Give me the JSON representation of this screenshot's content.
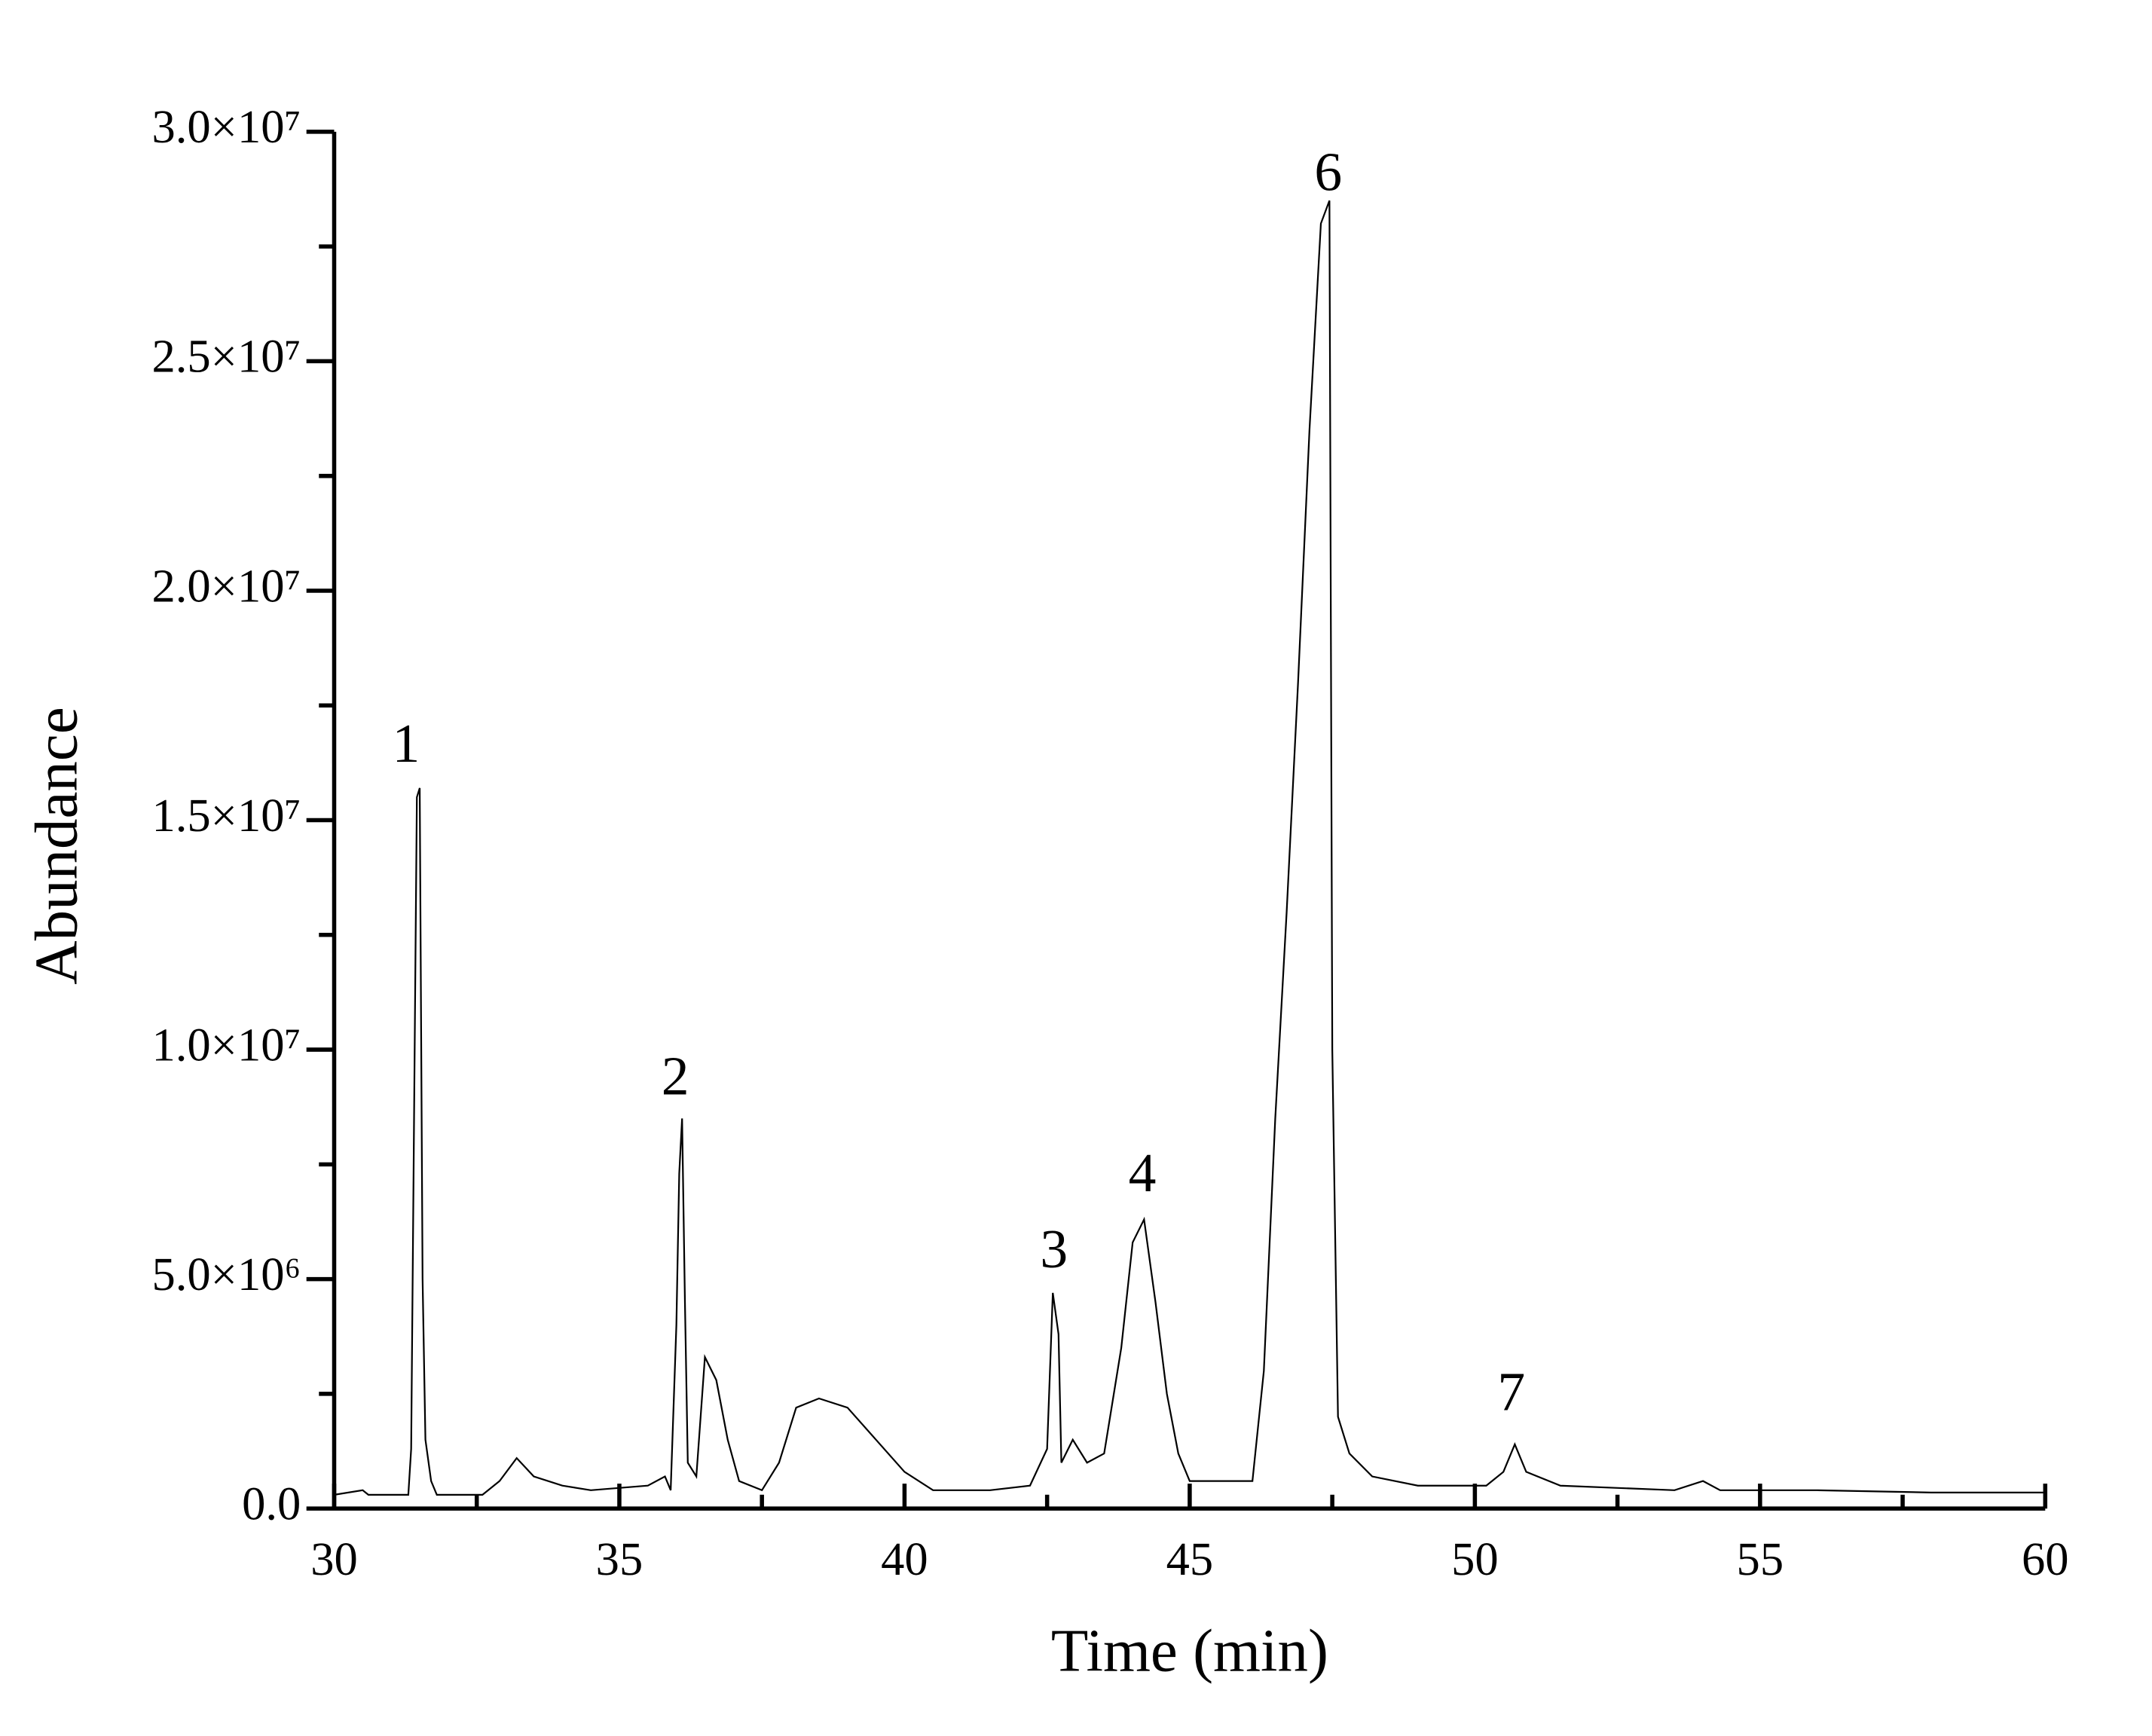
{
  "chart_data": {
    "type": "line",
    "xlabel": "Time (min)",
    "ylabel": "Abundance",
    "xlim": [
      30,
      60
    ],
    "ylim": [
      0,
      30000000
    ],
    "xticks": [
      30,
      35,
      40,
      45,
      50,
      55,
      60
    ],
    "x_minor_ticks": [
      32.5,
      37.5,
      42.5,
      47.5,
      52.5,
      57.5
    ],
    "yticks": [
      {
        "value": 0,
        "label": "0.0"
      },
      {
        "value": 5000000,
        "label": "5.0×10⁶"
      },
      {
        "value": 10000000,
        "label": "1.0×10⁷"
      },
      {
        "value": 15000000,
        "label": "1.5×10⁷"
      },
      {
        "value": 20000000,
        "label": "2.0×10⁷"
      },
      {
        "value": 25000000,
        "label": "2.5×10⁷"
      },
      {
        "value": 30000000,
        "label": "3.0×10⁷"
      }
    ],
    "y_minor_ticks": [
      2500000,
      7500000,
      12500000,
      17500000,
      22500000,
      27500000
    ],
    "series": [
      {
        "color": "#000000",
        "x": [
          30.0,
          30.5,
          30.6,
          31.3,
          31.35,
          31.45,
          31.5,
          31.55,
          31.6,
          31.7,
          31.8,
          32.6,
          32.9,
          33.2,
          33.5,
          34.0,
          34.5,
          35.5,
          35.8,
          35.9,
          36.0,
          36.05,
          36.1,
          36.15,
          36.2,
          36.35,
          36.5,
          36.7,
          36.9,
          37.1,
          37.5,
          37.8,
          38.1,
          38.5,
          39.0,
          39.5,
          40.0,
          40.5,
          41.5,
          42.2,
          42.5,
          42.6,
          42.7,
          42.75,
          42.95,
          43.2,
          43.5,
          43.8,
          44.0,
          44.2,
          44.4,
          44.6,
          44.8,
          45.0,
          46.1,
          46.3,
          46.5,
          46.7,
          46.9,
          47.1,
          47.3,
          47.45,
          47.5,
          47.6,
          47.8,
          48.2,
          49.0,
          50.2,
          50.5,
          50.7,
          50.9,
          51.5,
          53.5,
          54.0,
          54.3,
          56.0,
          58.0,
          60.0
        ],
        "values": [
          300000,
          400000,
          300000,
          300000,
          1300000,
          15500000,
          15700000,
          5000000,
          1500000,
          600000,
          300000,
          300000,
          600000,
          1100000,
          700000,
          500000,
          400000,
          500000,
          700000,
          400000,
          4000000,
          7300000,
          8500000,
          4500000,
          1000000,
          700000,
          3300000,
          2800000,
          1500000,
          600000,
          400000,
          1000000,
          2200000,
          2400000,
          2200000,
          1500000,
          800000,
          400000,
          400000,
          500000,
          1300000,
          4700000,
          3800000,
          1000000,
          1500000,
          1000000,
          1200000,
          3500000,
          5800000,
          6300000,
          4500000,
          2500000,
          1200000,
          600000,
          600000,
          3000000,
          8500000,
          13000000,
          18000000,
          23500000,
          28000000,
          28500000,
          10000000,
          2000000,
          1200000,
          700000,
          500000,
          500000,
          800000,
          1400000,
          800000,
          500000,
          400000,
          600000,
          400000,
          400000,
          350000,
          350000
        ]
      }
    ],
    "annotations": [
      {
        "text": "1",
        "x": 31.26,
        "y": 16550000
      },
      {
        "text": "2",
        "x": 35.98,
        "y": 9300000
      },
      {
        "text": "3",
        "x": 42.62,
        "y": 5530000
      },
      {
        "text": "4",
        "x": 44.17,
        "y": 7190000
      },
      {
        "text": "6",
        "x": 47.43,
        "y": 29000000
      },
      {
        "text": "7",
        "x": 50.64,
        "y": 2420000
      }
    ]
  }
}
